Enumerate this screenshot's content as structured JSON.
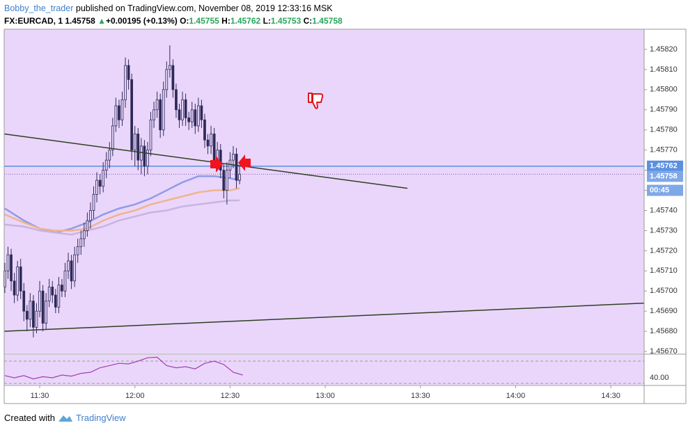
{
  "header": {
    "author": "Bobby_the_trader",
    "published": "published on TradingView.com, November 08, 2019 12:33:16 MSK",
    "symbol": "FX:EURCAD, 1",
    "last": "1.45758",
    "arrow": "▲",
    "change": "+0.00195 (+0.13%)",
    "ohlc": [
      {
        "label": "O:",
        "value": "1.45755"
      },
      {
        "label": "H:",
        "value": "1.45762"
      },
      {
        "label": "L:",
        "value": "1.45753"
      },
      {
        "label": "C:",
        "value": "1.45758"
      }
    ]
  },
  "footer": {
    "text": "Created with",
    "brand": "TradingView"
  },
  "chart_data": {
    "type": "candlestick",
    "x": [
      679,
      680,
      681,
      682,
      683,
      684,
      685,
      686,
      687,
      688,
      689,
      690,
      691,
      692,
      693,
      694,
      695,
      696,
      697,
      698,
      699,
      700,
      701,
      702,
      703,
      704,
      705,
      706,
      707,
      708,
      709,
      710,
      711,
      712,
      713,
      714,
      715,
      716,
      717,
      718,
      719,
      720,
      721,
      722,
      723,
      724,
      725,
      726,
      727,
      728,
      729,
      730,
      731,
      732,
      733,
      734,
      735,
      736,
      737,
      738,
      739,
      740,
      741,
      742,
      743,
      744,
      745,
      746,
      747,
      748,
      749,
      750,
      751,
      752,
      753
    ],
    "open": [
      1.45702,
      1.4571,
      1.45718,
      1.45705,
      1.45698,
      1.45712,
      1.457,
      1.4569,
      1.45686,
      1.45695,
      1.45682,
      1.4569,
      1.457,
      1.45684,
      1.45695,
      1.45702,
      1.45698,
      1.45692,
      1.45703,
      1.457,
      1.4571,
      1.45715,
      1.45705,
      1.45718,
      1.45722,
      1.45726,
      1.4573,
      1.45735,
      1.4574,
      1.45748,
      1.45755,
      1.45752,
      1.4576,
      1.45765,
      1.4577,
      1.45782,
      1.45792,
      1.45785,
      1.45795,
      1.45812,
      1.45805,
      1.4577,
      1.45778,
      1.45765,
      1.45772,
      1.45762,
      1.4577,
      1.45785,
      1.4579,
      1.45795,
      1.4578,
      1.458,
      1.4581,
      1.45812,
      1.458,
      1.4579,
      1.45785,
      1.45795,
      1.45786,
      1.45784,
      1.4579,
      1.45782,
      1.45792,
      1.45785,
      1.45775,
      1.45772,
      1.45778,
      1.45765,
      1.4577,
      1.4576,
      1.4575,
      1.4576,
      1.45765,
      1.45768,
      1.45755
    ],
    "high": [
      1.45714,
      1.45722,
      1.45721,
      1.45709,
      1.45715,
      1.45716,
      1.45704,
      1.45693,
      1.45699,
      1.45698,
      1.45694,
      1.45705,
      1.45703,
      1.45699,
      1.45706,
      1.45705,
      1.45701,
      1.45707,
      1.45706,
      1.45714,
      1.45719,
      1.45718,
      1.45722,
      1.45726,
      1.4573,
      1.45734,
      1.45739,
      1.45744,
      1.45752,
      1.45759,
      1.45758,
      1.45764,
      1.45769,
      1.45774,
      1.45786,
      1.45796,
      1.45795,
      1.45799,
      1.45816,
      1.45815,
      1.45808,
      1.45782,
      1.45781,
      1.45776,
      1.45775,
      1.45774,
      1.45789,
      1.45794,
      1.45799,
      1.45798,
      1.45804,
      1.45814,
      1.45822,
      1.45815,
      1.45803,
      1.45793,
      1.45799,
      1.45798,
      1.45789,
      1.45794,
      1.45793,
      1.45796,
      1.45795,
      1.45788,
      1.45778,
      1.45782,
      1.45781,
      1.45774,
      1.45773,
      1.45763,
      1.45764,
      1.45769,
      1.45772,
      1.45771,
      1.45762
    ],
    "low": [
      1.45699,
      1.45706,
      1.457,
      1.45694,
      1.45695,
      1.45696,
      1.45685,
      1.4568,
      1.45682,
      1.45677,
      1.45679,
      1.45687,
      1.4568,
      1.45681,
      1.45692,
      1.45694,
      1.45689,
      1.45689,
      1.45697,
      1.45697,
      1.45706,
      1.45701,
      1.45702,
      1.45714,
      1.45718,
      1.45722,
      1.45727,
      1.45731,
      1.45736,
      1.45744,
      1.45748,
      1.45749,
      1.45756,
      1.45761,
      1.45767,
      1.45779,
      1.45781,
      1.45782,
      1.45791,
      1.458,
      1.45765,
      1.45762,
      1.4576,
      1.45758,
      1.45757,
      1.45758,
      1.45767,
      1.45781,
      1.45786,
      1.45776,
      1.45777,
      1.45796,
      1.45806,
      1.45796,
      1.45786,
      1.45781,
      1.45782,
      1.45782,
      1.4578,
      1.45781,
      1.45778,
      1.45779,
      1.45781,
      1.45771,
      1.45768,
      1.45768,
      1.45761,
      1.45761,
      1.45756,
      1.45746,
      1.45743,
      1.45756,
      1.45761,
      1.45751,
      1.45753
    ],
    "close": [
      1.4571,
      1.45718,
      1.45705,
      1.45698,
      1.45712,
      1.457,
      1.4569,
      1.45686,
      1.45695,
      1.45682,
      1.4569,
      1.457,
      1.45684,
      1.45695,
      1.45702,
      1.45698,
      1.45692,
      1.45703,
      1.457,
      1.4571,
      1.45715,
      1.45705,
      1.45718,
      1.45722,
      1.45726,
      1.4573,
      1.45735,
      1.4574,
      1.45748,
      1.45755,
      1.45752,
      1.4576,
      1.45765,
      1.4577,
      1.45782,
      1.45792,
      1.45785,
      1.45795,
      1.45812,
      1.45805,
      1.4577,
      1.45778,
      1.45765,
      1.45772,
      1.45762,
      1.4577,
      1.45785,
      1.4579,
      1.45795,
      1.4578,
      1.458,
      1.4581,
      1.45812,
      1.458,
      1.4579,
      1.45785,
      1.45795,
      1.45786,
      1.45784,
      1.4579,
      1.45782,
      1.45792,
      1.45785,
      1.45775,
      1.45772,
      1.45778,
      1.45765,
      1.4577,
      1.4576,
      1.4575,
      1.4576,
      1.45765,
      1.45768,
      1.45755,
      1.45758
    ],
    "up_color": "#e4d2fa",
    "down_color": "#2e2a58",
    "wick_color": "#2e2a58",
    "overlays": [
      {
        "color": "#8f9be8",
        "x": [
          679,
          685,
          690,
          695,
          700,
          705,
          710,
          715,
          720,
          725,
          730,
          735,
          740,
          745,
          750,
          753
        ],
        "values": [
          1.45741,
          1.45735,
          1.45731,
          1.45729,
          1.45731,
          1.45734,
          1.45738,
          1.45741,
          1.45743,
          1.45746,
          1.4575,
          1.45754,
          1.45757,
          1.45757,
          1.45756,
          1.45755
        ]
      },
      {
        "color": "#f0b48a",
        "x": [
          679,
          685,
          690,
          695,
          700,
          705,
          710,
          715,
          720,
          725,
          730,
          735,
          740,
          745,
          750,
          753
        ],
        "values": [
          1.45738,
          1.45734,
          1.45731,
          1.4573,
          1.4573,
          1.45731,
          1.45735,
          1.45738,
          1.4574,
          1.45743,
          1.45745,
          1.45747,
          1.45749,
          1.4575,
          1.4575,
          1.45751
        ]
      },
      {
        "color": "#c9b3e0",
        "x": [
          679,
          685,
          690,
          695,
          700,
          705,
          710,
          715,
          720,
          725,
          730,
          735,
          740,
          745,
          750,
          753
        ],
        "values": [
          1.45733,
          1.45732,
          1.4573,
          1.45729,
          1.45728,
          1.4573,
          1.45732,
          1.45735,
          1.45737,
          1.45739,
          1.4574,
          1.45742,
          1.45743,
          1.45744,
          1.45745,
          1.45745
        ]
      }
    ],
    "trendlines": [
      {
        "color": "#2d3f22",
        "x": [
          678.8,
          805.9
        ],
        "values": [
          1.45778,
          1.45751
        ]
      },
      {
        "color": "#2d3f22",
        "x": [
          678.8,
          880.5
        ],
        "values": [
          1.4568,
          1.45694
        ]
      }
    ],
    "hline": {
      "value": 1.45762,
      "color": "#5b8fe0"
    },
    "last_line": {
      "value": 1.45758,
      "color": "#7a5aa8"
    },
    "price_labels": [
      {
        "value": 1.45762,
        "label": "1.45762",
        "color": "#5b8fe0"
      },
      {
        "value": 1.45758,
        "label": "1.45758",
        "color": "#7fa8e8"
      },
      {
        "value": 1.4575,
        "label": "00:45",
        "color": "#7fa8e8"
      }
    ],
    "xlim": [
      678.8,
      880.5
    ],
    "xticks": [
      {
        "value": 690,
        "label": "11:30"
      },
      {
        "value": 720,
        "label": "12:00"
      },
      {
        "value": 750,
        "label": "12:30"
      },
      {
        "value": 780,
        "label": "13:00"
      },
      {
        "value": 810,
        "label": "13:30"
      },
      {
        "value": 840,
        "label": "14:00"
      },
      {
        "value": 870,
        "label": "14:30"
      }
    ],
    "ylim": [
      1.45669,
      1.4583
    ],
    "yticks": [
      {
        "value": 1.4567,
        "label": "1.45670"
      },
      {
        "value": 1.4568,
        "label": "1.45680"
      },
      {
        "value": 1.4569,
        "label": "1.45690"
      },
      {
        "value": 1.457,
        "label": "1.45700"
      },
      {
        "value": 1.4571,
        "label": "1.45710"
      },
      {
        "value": 1.4572,
        "label": "1.45720"
      },
      {
        "value": 1.4573,
        "label": "1.45730"
      },
      {
        "value": 1.4574,
        "label": "1.45740"
      },
      {
        "value": 1.4575,
        "label": "1.45750"
      },
      {
        "value": 1.4576,
        "label": "1.45760"
      },
      {
        "value": 1.4577,
        "label": "1.45770"
      },
      {
        "value": 1.4578,
        "label": "1.45780"
      },
      {
        "value": 1.4579,
        "label": "1.45790"
      },
      {
        "value": 1.458,
        "label": "1.45800"
      },
      {
        "value": 1.4581,
        "label": "1.45810"
      },
      {
        "value": 1.4582,
        "label": "1.45820"
      }
    ],
    "rsi": {
      "color": "#a040b0",
      "ylim": [
        27.5,
        81.25
      ],
      "bands": [
        30,
        70
      ],
      "yticks": [
        {
          "value": 40,
          "label": "40.00"
        }
      ],
      "x": [
        679,
        682,
        685,
        688,
        691,
        694,
        697,
        700,
        703,
        706,
        709,
        712,
        715,
        718,
        721,
        724,
        727,
        730,
        733,
        736,
        739,
        742,
        745,
        748,
        751,
        754
      ],
      "values": [
        44,
        40,
        44,
        38,
        42,
        40,
        45,
        43,
        48,
        50,
        58,
        62,
        66,
        65,
        70,
        76,
        77,
        62,
        58,
        60,
        56,
        66,
        70,
        64,
        50,
        45
      ]
    }
  }
}
